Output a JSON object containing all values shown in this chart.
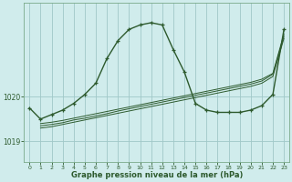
{
  "xlabel": "Graphe pression niveau de la mer (hPa)",
  "background_color": "#d0ecec",
  "grid_color": "#a0c8c8",
  "line_color": "#2d5a2d",
  "xlim": [
    -0.5,
    23.5
  ],
  "ylim": [
    1018.55,
    1022.1
  ],
  "yticks": [
    1019,
    1020
  ],
  "xticks": [
    0,
    1,
    2,
    3,
    4,
    5,
    6,
    7,
    8,
    9,
    10,
    11,
    12,
    13,
    14,
    15,
    16,
    17,
    18,
    19,
    20,
    21,
    22,
    23
  ],
  "lines": [
    {
      "x": [
        0,
        1,
        2,
        3,
        4,
        5,
        6,
        7,
        8,
        9,
        10,
        11,
        12,
        13,
        14,
        15,
        16,
        17,
        18,
        19,
        20,
        21,
        22,
        23
      ],
      "y": [
        1019.75,
        1019.5,
        1019.6,
        1019.7,
        1019.85,
        1020.05,
        1020.3,
        1020.85,
        1021.25,
        1021.5,
        1021.6,
        1021.65,
        1021.6,
        1021.05,
        1020.55,
        1019.85,
        1019.7,
        1019.65,
        1019.65,
        1019.65,
        1019.7,
        1019.8,
        1020.05,
        1021.5
      ],
      "has_markers": true,
      "lw": 1.0
    },
    {
      "x": [
        1,
        2,
        3,
        4,
        5,
        6,
        7,
        8,
        9,
        10,
        11,
        12,
        13,
        14,
        15,
        16,
        17,
        18,
        19,
        20,
        21,
        22,
        23
      ],
      "y": [
        1019.35,
        1019.38,
        1019.42,
        1019.48,
        1019.52,
        1019.57,
        1019.62,
        1019.68,
        1019.73,
        1019.78,
        1019.83,
        1019.88,
        1019.93,
        1019.98,
        1020.03,
        1020.08,
        1020.13,
        1020.18,
        1020.23,
        1020.28,
        1020.35,
        1020.5,
        1021.35
      ],
      "has_markers": false,
      "lw": 0.7
    },
    {
      "x": [
        1,
        2,
        3,
        4,
        5,
        6,
        7,
        8,
        9,
        10,
        11,
        12,
        13,
        14,
        15,
        16,
        17,
        18,
        19,
        20,
        21,
        22,
        23
      ],
      "y": [
        1019.3,
        1019.33,
        1019.38,
        1019.43,
        1019.48,
        1019.53,
        1019.58,
        1019.63,
        1019.68,
        1019.73,
        1019.78,
        1019.83,
        1019.88,
        1019.93,
        1019.98,
        1020.03,
        1020.08,
        1020.13,
        1020.18,
        1020.23,
        1020.3,
        1020.45,
        1021.3
      ],
      "has_markers": false,
      "lw": 0.7
    },
    {
      "x": [
        1,
        2,
        3,
        4,
        5,
        6,
        7,
        8,
        9,
        10,
        11,
        12,
        13,
        14,
        15,
        16,
        17,
        18,
        19,
        20,
        21,
        22,
        23
      ],
      "y": [
        1019.4,
        1019.43,
        1019.47,
        1019.52,
        1019.57,
        1019.62,
        1019.67,
        1019.72,
        1019.77,
        1019.82,
        1019.87,
        1019.92,
        1019.97,
        1020.02,
        1020.07,
        1020.12,
        1020.17,
        1020.22,
        1020.27,
        1020.32,
        1020.39,
        1020.52,
        1021.4
      ],
      "has_markers": false,
      "lw": 0.7
    }
  ]
}
